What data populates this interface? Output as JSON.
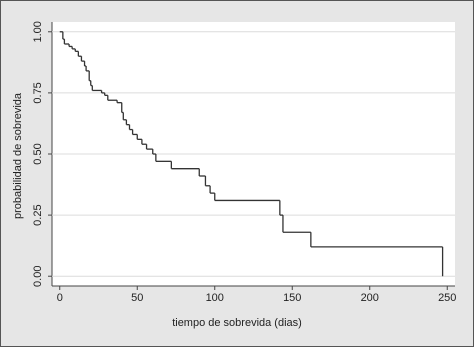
{
  "chart_data": {
    "type": "step",
    "x_label": "tiempo de sobrevida (dias)",
    "y_label": "probabilidad de sobrevida",
    "x": [
      0,
      2,
      3,
      6,
      8,
      10,
      12,
      14,
      16,
      17,
      19,
      20,
      21,
      27,
      29,
      31,
      37,
      40,
      41,
      43,
      45,
      47,
      50,
      53,
      56,
      60,
      62,
      72,
      90,
      94,
      97,
      100,
      142,
      144,
      162,
      247
    ],
    "values": [
      1.0,
      0.97,
      0.95,
      0.94,
      0.93,
      0.92,
      0.9,
      0.88,
      0.86,
      0.84,
      0.8,
      0.78,
      0.76,
      0.75,
      0.74,
      0.72,
      0.71,
      0.67,
      0.64,
      0.62,
      0.6,
      0.58,
      0.56,
      0.54,
      0.52,
      0.5,
      0.47,
      0.44,
      0.41,
      0.37,
      0.34,
      0.31,
      0.25,
      0.18,
      0.12,
      0.0
    ],
    "color": "#333333",
    "xlim": [
      -5,
      255
    ],
    "ylim": [
      -0.04,
      1.04
    ],
    "xticks": [
      0,
      50,
      100,
      150,
      200,
      250
    ],
    "yticks": [
      {
        "value": 0,
        "label": "0.00"
      },
      {
        "value": 0.25,
        "label": "0.25"
      },
      {
        "value": 0.5,
        "label": "0.50"
      },
      {
        "value": 0.75,
        "label": "0.75"
      },
      {
        "value": 1,
        "label": "1.00"
      }
    ],
    "grid": true
  }
}
